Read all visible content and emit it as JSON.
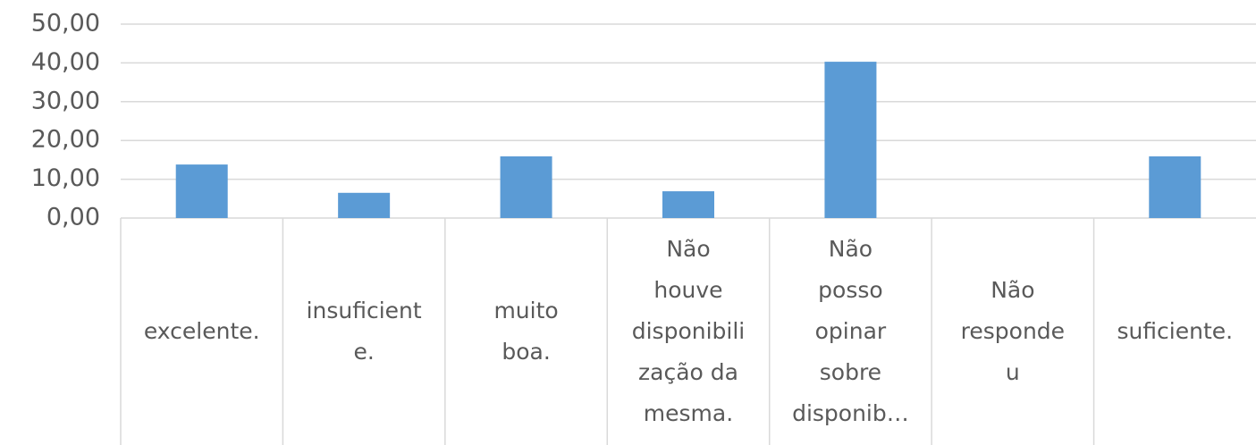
{
  "chart_data": {
    "type": "bar",
    "categories": [
      [
        "excelente."
      ],
      [
        "insuficient",
        "e."
      ],
      [
        "muito",
        "boa."
      ],
      [
        "Não",
        "houve",
        "disponibili",
        "zação da",
        "mesma."
      ],
      [
        "Não",
        "posso",
        "opinar",
        "sobre",
        "disponib…"
      ],
      [
        "Não",
        "responde",
        "u"
      ],
      [
        "suficiente."
      ]
    ],
    "values": [
      13.8,
      6.5,
      15.9,
      6.9,
      40.3,
      0,
      15.9
    ],
    "color": "#5b9bd5",
    "ylim": [
      0,
      50
    ],
    "yticks": [
      {
        "value": 0,
        "label": "0,00"
      },
      {
        "value": 10,
        "label": "10,00"
      },
      {
        "value": 20,
        "label": "20,00"
      },
      {
        "value": 30,
        "label": "30,00"
      },
      {
        "value": 40,
        "label": "40,00"
      },
      {
        "value": 50,
        "label": "50,00"
      }
    ],
    "grid": true
  }
}
